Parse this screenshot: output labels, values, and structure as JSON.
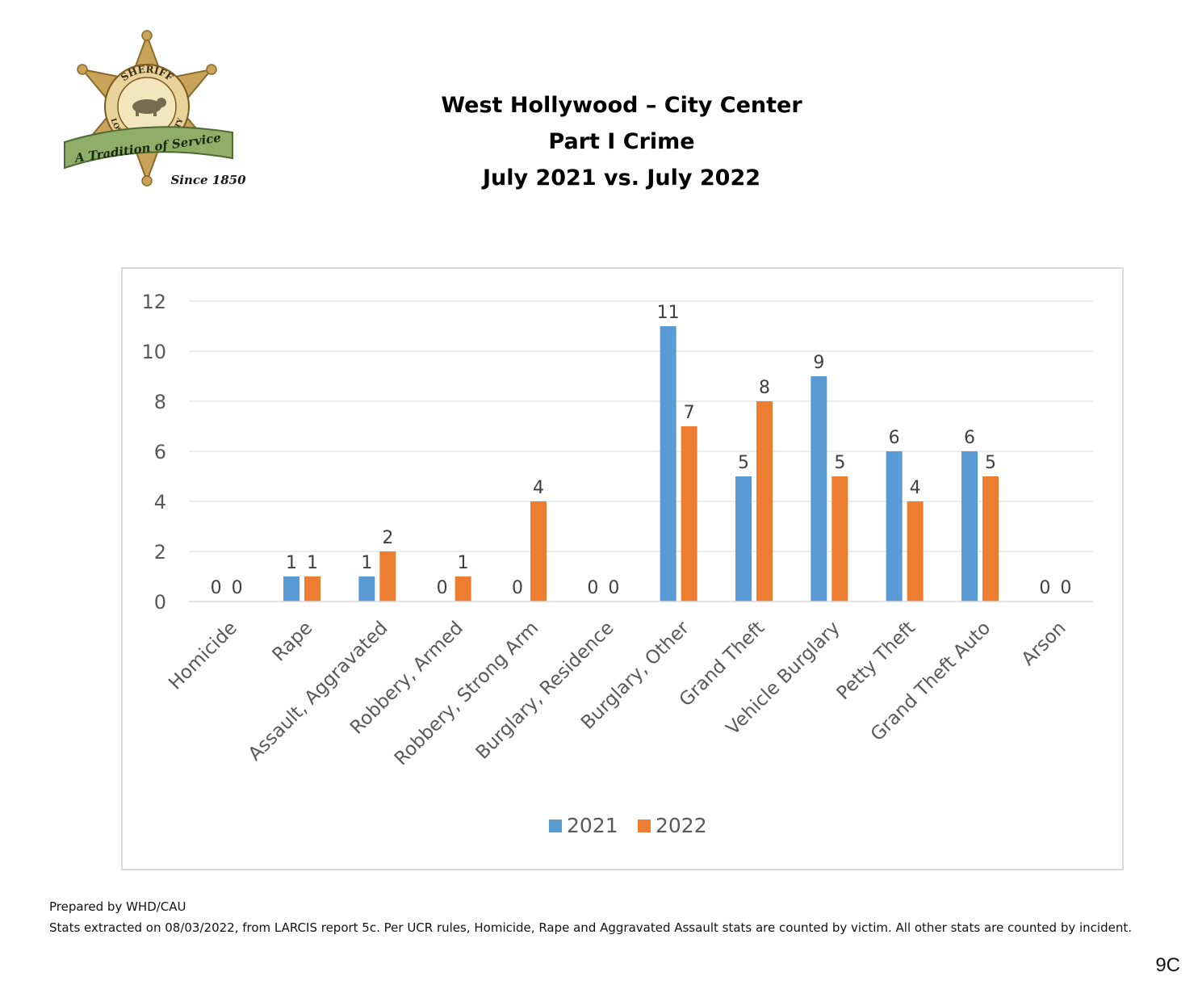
{
  "header": {
    "title_line1": "West Hollywood – City Center",
    "title_line2": "Part I Crime",
    "title_line3": "July 2021 vs. July 2022"
  },
  "logo": {
    "icon": "sheriff-star-badge-icon",
    "top_text": "SHERIFF",
    "ring_text": "LOS ANGELES COUNTY",
    "ribbon_text": "A Tradition of Service",
    "since_text": "Since 1850",
    "colors": {
      "star": "#c9a35a",
      "ribbon": "#8fae6a"
    }
  },
  "chart_data": {
    "type": "bar",
    "categories": [
      "Homicide",
      "Rape",
      "Assault, Aggravated",
      "Robbery, Armed",
      "Robbery, Strong Arm",
      "Burglary, Residence",
      "Burglary, Other",
      "Grand Theft",
      "Vehicle Burglary",
      "Petty Theft",
      "Grand Theft Auto",
      "Arson"
    ],
    "series": [
      {
        "name": "2021",
        "color": "#5b9bd5",
        "values": [
          0,
          1,
          1,
          0,
          0,
          0,
          11,
          5,
          9,
          6,
          6,
          0
        ]
      },
      {
        "name": "2022",
        "color": "#ed7d31",
        "values": [
          0,
          1,
          2,
          1,
          4,
          0,
          7,
          8,
          5,
          4,
          5,
          0
        ]
      }
    ],
    "ylim": [
      0,
      12
    ],
    "yticks": [
      "0",
      "2",
      "4",
      "6",
      "8",
      "10",
      "12"
    ],
    "grid": true,
    "legend": "bottom",
    "data_labels": true
  },
  "footer": {
    "prepared": "Prepared by WHD/CAU",
    "note": "Stats extracted on 08/03/2022, from LARCIS report 5c. Per UCR rules, Homicide, Rape and Aggravated Assault stats are counted by victim. All other stats are counted by incident."
  },
  "page_number": "9C"
}
